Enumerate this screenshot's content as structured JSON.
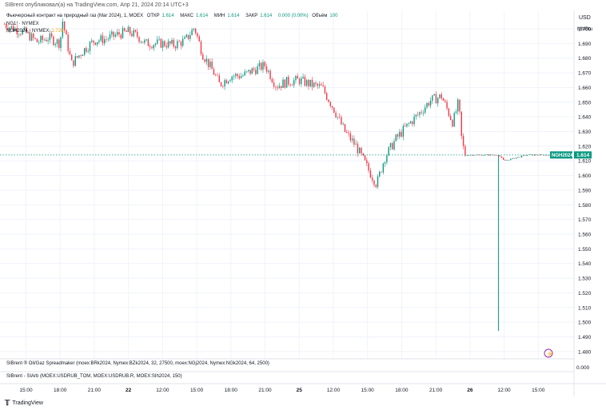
{
  "header": {
    "published": "SIBrent опубликовал(а) на TradingView.com, Апр 21, 2024 20:14 UTC+3"
  },
  "legend": {
    "title": "Фьючерсный контракт на природный газ (Мar 2024), 1, MOEX",
    "open_label": "ОТКР",
    "open": "1.614",
    "high_label": "МАКС",
    "high": "1.614",
    "low_label": "МИН",
    "low": "1.614",
    "close_label": "ЗАКР",
    "close": "1.614",
    "change": "0.000 (0.00%)",
    "volume_label": "Объём",
    "volume": "100",
    "line2": "NG1! · NYMEX",
    "line3_label": "NGH2024 · NYMEX",
    "line3_value": "1.720"
  },
  "axis": {
    "currency": "USD",
    "unit": "MMBtu",
    "price_label": "NGH2024",
    "price_value": "1.614"
  },
  "panes": {
    "pane1": "SIBrent ® Oil/Gaz Spreadmaker (moex:BRk2024, Nymex:BZk2024, 32, 27500, moex:NGj2024, Nymex:NGk2024, 64, 2500)",
    "pane1_value": "0.000",
    "pane2": "SIBrent - SIArb (MOEX:USDRUB_TOM, MOEX:USDRUB.R, MOEX:SIh2024, 150)"
  },
  "footer": {
    "brand": "TradingView"
  },
  "colors": {
    "up": "#089981",
    "down": "#f23645",
    "accent": "#089981",
    "grid": "#f0f3fa"
  },
  "chart_data": {
    "type": "candlestick",
    "ylim": [
      1.475,
      1.712
    ],
    "y_ticks": [
      "1.700",
      "1.690",
      "1.680",
      "1.670",
      "1.660",
      "1.650",
      "1.640",
      "1.630",
      "1.620",
      "1.610",
      "1.600",
      "1.590",
      "1.580",
      "1.570",
      "1.560",
      "1.550",
      "1.540",
      "1.530",
      "1.520",
      "1.510",
      "1.500",
      "1.490",
      "1.480"
    ],
    "x_ticks": [
      "15:00",
      "18:00",
      "21:00",
      "22",
      "12:00",
      "15:00",
      "18:00",
      "21:00",
      "25",
      "12:00",
      "15:00",
      "18:00",
      "21:00",
      "26",
      "12:00",
      "15:00"
    ],
    "x_tick_bold": [
      false,
      false,
      false,
      true,
      false,
      false,
      false,
      false,
      true,
      false,
      false,
      false,
      false,
      true,
      false,
      false
    ],
    "x_tick_positions": [
      0.0,
      3.0,
      6.0,
      9.0,
      12.0,
      15.0,
      18.0,
      21.0,
      24.0,
      27.0,
      30.0,
      33.0,
      36.0,
      39.0,
      42.0,
      45.0
    ],
    "x_range": [
      -2.0,
      48.0
    ],
    "last_price": 1.614,
    "series": [
      {
        "x": -1.9,
        "y": 1.703
      },
      {
        "x": -1.0,
        "y": 1.7
      },
      {
        "x": 0.0,
        "y": 1.697
      },
      {
        "x": 1.0,
        "y": 1.691
      },
      {
        "x": 2.0,
        "y": 1.694
      },
      {
        "x": 3.0,
        "y": 1.69
      },
      {
        "x": 3.2,
        "y": 1.706
      },
      {
        "x": 4.0,
        "y": 1.676
      },
      {
        "x": 5.0,
        "y": 1.685
      },
      {
        "x": 6.0,
        "y": 1.692
      },
      {
        "x": 7.0,
        "y": 1.693
      },
      {
        "x": 8.0,
        "y": 1.696
      },
      {
        "x": 9.0,
        "y": 1.698
      },
      {
        "x": 9.8,
        "y": 1.695
      },
      {
        "x": 10.5,
        "y": 1.69
      },
      {
        "x": 12.0,
        "y": 1.69
      },
      {
        "x": 13.0,
        "y": 1.689
      },
      {
        "x": 14.0,
        "y": 1.692
      },
      {
        "x": 14.8,
        "y": 1.701
      },
      {
        "x": 15.5,
        "y": 1.683
      },
      {
        "x": 16.5,
        "y": 1.67
      },
      {
        "x": 17.0,
        "y": 1.662
      },
      {
        "x": 18.0,
        "y": 1.668
      },
      {
        "x": 19.0,
        "y": 1.668
      },
      {
        "x": 20.0,
        "y": 1.672
      },
      {
        "x": 21.0,
        "y": 1.675
      },
      {
        "x": 22.0,
        "y": 1.661
      },
      {
        "x": 23.0,
        "y": 1.664
      },
      {
        "x": 24.0,
        "y": 1.665
      },
      {
        "x": 25.0,
        "y": 1.662
      },
      {
        "x": 26.0,
        "y": 1.66
      },
      {
        "x": 27.0,
        "y": 1.646
      },
      {
        "x": 28.0,
        "y": 1.63
      },
      {
        "x": 29.0,
        "y": 1.62
      },
      {
        "x": 30.0,
        "y": 1.605
      },
      {
        "x": 30.8,
        "y": 1.594
      },
      {
        "x": 31.5,
        "y": 1.612
      },
      {
        "x": 32.5,
        "y": 1.625
      },
      {
        "x": 33.5,
        "y": 1.634
      },
      {
        "x": 34.5,
        "y": 1.642
      },
      {
        "x": 35.5,
        "y": 1.651
      },
      {
        "x": 36.5,
        "y": 1.654
      },
      {
        "x": 37.5,
        "y": 1.636
      },
      {
        "x": 38.0,
        "y": 1.65
      },
      {
        "x": 38.3,
        "y": 1.622
      },
      {
        "x": 38.6,
        "y": 1.614
      },
      {
        "x": 40.0,
        "y": 1.614
      },
      {
        "x": 41.5,
        "y": 1.614
      },
      {
        "x": 42.0,
        "y": 1.61
      },
      {
        "x": 43.0,
        "y": 1.612
      },
      {
        "x": 44.0,
        "y": 1.614
      },
      {
        "x": 45.5,
        "y": 1.614
      },
      {
        "x": 46.5,
        "y": 1.614
      }
    ],
    "spike": {
      "x": 41.5,
      "high": 1.614,
      "low": 1.494
    }
  }
}
